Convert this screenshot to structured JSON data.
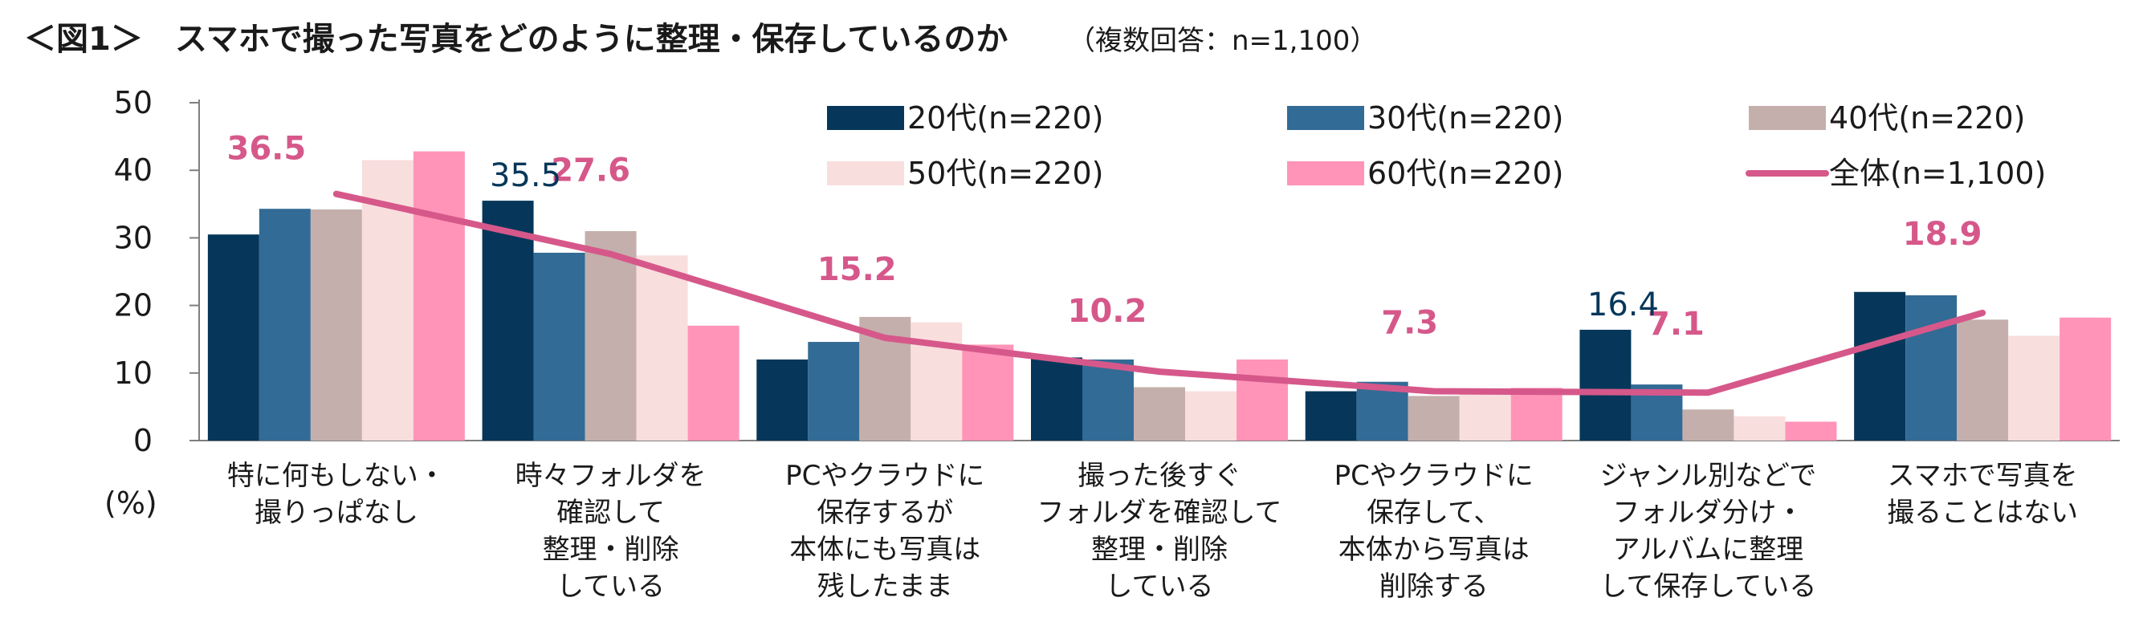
{
  "title": "＜図1＞　スマホで撮った写真をどのように整理・保存しているのか",
  "subtitle": "（複数回答：n=1,100）",
  "chart_data": {
    "type": "bar",
    "ylim": [
      0,
      50
    ],
    "yticks": [
      0,
      10,
      20,
      30,
      40,
      50
    ],
    "ylabel": "(%)",
    "categories": [
      [
        "特に何もしない・",
        "撮りっぱなし"
      ],
      [
        "時々フォルダを",
        "確認して",
        "整理・削除",
        "している"
      ],
      [
        "PCやクラウドに",
        "保存するが",
        "本体にも写真は",
        "残したまま"
      ],
      [
        "撮った後すぐ",
        "フォルダを確認して",
        "整理・削除",
        "している"
      ],
      [
        "PCやクラウドに",
        "保存して、",
        "本体から写真は",
        "削除する"
      ],
      [
        "ジャンル別などで",
        "フォルダ分け・",
        "アルバムに整理",
        "して保存している"
      ],
      [
        "スマホで写真を",
        "撮ることはない"
      ]
    ],
    "series": [
      {
        "name": "20代(n=220)",
        "color": "#06375a",
        "values": [
          30.5,
          35.5,
          12.0,
          12.3,
          7.3,
          16.4,
          22.0
        ]
      },
      {
        "name": "30代(n=220)",
        "color": "#326b95",
        "values": [
          34.3,
          27.8,
          14.6,
          12.0,
          8.7,
          8.3,
          21.5
        ]
      },
      {
        "name": "40代(n=220)",
        "color": "#c4afac",
        "values": [
          34.2,
          31.0,
          18.3,
          7.9,
          6.6,
          4.6,
          17.9
        ]
      },
      {
        "name": "50代(n=220)",
        "color": "#f9dede",
        "values": [
          41.5,
          27.4,
          17.5,
          7.3,
          7.0,
          3.6,
          15.5
        ]
      },
      {
        "name": "60代(n=220)",
        "color": "#ff94b8",
        "values": [
          42.8,
          17.0,
          14.2,
          12.0,
          7.8,
          2.8,
          18.2
        ]
      }
    ],
    "total": {
      "name": "全体(n=1,100)",
      "color": "#d6588a",
      "values": [
        36.5,
        27.6,
        15.2,
        10.2,
        7.3,
        7.1,
        18.9
      ]
    },
    "total_labels": [
      "36.5",
      "27.6",
      "15.2",
      "10.2",
      "7.3",
      "7.1",
      "18.9"
    ],
    "highlight_labels": [
      {
        "category": 1,
        "series": 0,
        "text": "35.5"
      },
      {
        "category": 5,
        "series": 0,
        "text": "16.4"
      }
    ]
  }
}
